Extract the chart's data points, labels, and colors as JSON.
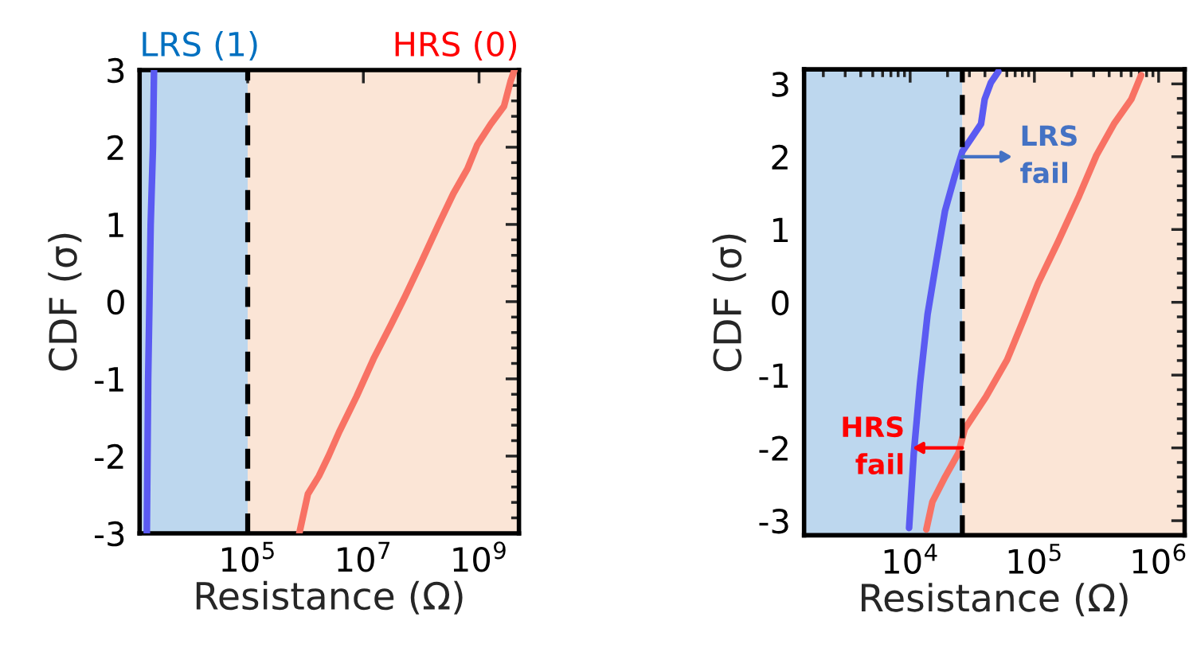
{
  "chart_data": [
    {
      "type": "line",
      "xlabel": "Resistance (Ω)",
      "ylabel": "CDF (σ)",
      "log": "x",
      "xlim": [
        1350,
        4900000000
      ],
      "ylim": [
        -3,
        3
      ],
      "xticks": [
        {
          "value": 100000,
          "label": "10$^{5}$"
        },
        {
          "value": 10000000,
          "label": "10$^{7}$"
        },
        {
          "value": 1000000000,
          "label": "10$^{9}$"
        }
      ],
      "yticks": [
        -3,
        -2,
        -1,
        0,
        1,
        2,
        3
      ],
      "grid": false,
      "series": [
        {
          "color": "#5a5af2",
          "x": [
            1800,
            1900,
            2000,
            2100,
            2300,
            2400
          ],
          "values": [
            -3,
            -1,
            0,
            1,
            2,
            3
          ]
        },
        {
          "color": "#f87264",
          "x": [
            780000,
            1100000,
            1700000,
            2500000,
            3800000,
            7600000,
            15000000,
            30000000,
            52000000,
            100000000,
            200000000,
            360000000,
            630000000,
            930000000,
            1600000000,
            2700000000,
            3500000000,
            4100000000
          ],
          "values": [
            -3,
            -2.49,
            -2.26,
            -2.0,
            -1.69,
            -1.23,
            -0.74,
            -0.3,
            0.06,
            0.51,
            1.0,
            1.4,
            1.72,
            2.03,
            2.3,
            2.53,
            2.85,
            3.0
          ]
        }
      ],
      "bands": [
        {
          "axis": "x",
          "from": 1350,
          "to": 100000,
          "color": "#bdd7ee"
        },
        {
          "axis": "x",
          "from": 100000,
          "to": 4900000000,
          "color": "#fbe5d6"
        }
      ],
      "ref_lines": [
        {
          "axis": "x",
          "value": 100000,
          "color": "#000000",
          "line_style": "dashed"
        }
      ],
      "annotations": [
        "LRS (1)",
        "HRS (0)"
      ]
    },
    {
      "type": "line",
      "xlabel": "Resistance (Ω)",
      "ylabel": "CDF (σ)",
      "log": "x",
      "xlim": [
        1400,
        1620000
      ],
      "ylim": [
        -3.2,
        3.2
      ],
      "xticks": [
        {
          "value": 10000,
          "label": "10$^{4}$"
        },
        {
          "value": 100000,
          "label": "10$^{5}$"
        },
        {
          "value": 1000000,
          "label": "10$^{6}$"
        }
      ],
      "yticks": [
        -3,
        -2,
        -1,
        0,
        1,
        2,
        3
      ],
      "grid": false,
      "series": [
        {
          "color": "#5a5af2",
          "x": [
            9800,
            10700,
            12000,
            13800,
            16200,
            19100,
            22900,
            26300,
            31600,
            37200,
            39800,
            44700,
            51300
          ],
          "values": [
            -3.1,
            -2.07,
            -1.12,
            -0.17,
            0.55,
            1.26,
            1.74,
            2.07,
            2.27,
            2.45,
            2.79,
            3.02,
            3.17
          ]
        },
        {
          "color": "#f87264",
          "x": [
            13500,
            15100,
            19100,
            24500,
            27500,
            40700,
            60300,
            83200,
            107000,
            155000,
            229000,
            316000,
            437000,
            603000,
            724000
          ],
          "values": [
            -3.12,
            -2.74,
            -2.4,
            -2.07,
            -1.74,
            -1.3,
            -0.79,
            -0.21,
            0.26,
            0.83,
            1.46,
            2.02,
            2.45,
            2.79,
            3.12
          ]
        }
      ],
      "bands": [
        {
          "axis": "x",
          "from": 1400,
          "to": 26300,
          "color": "#bdd7ee"
        },
        {
          "axis": "x",
          "from": 26300,
          "to": 1620000,
          "color": "#fbe5d6"
        }
      ],
      "ref_lines": [
        {
          "axis": "x",
          "value": 26300,
          "color": "#000000",
          "line_style": "dashed"
        }
      ],
      "annotations": [
        {
          "text": "LRS\nfail",
          "x": 26300,
          "y": 2
        },
        {
          "text": "HRS\nfail",
          "x": 26300,
          "y": -2
        }
      ]
    }
  ]
}
